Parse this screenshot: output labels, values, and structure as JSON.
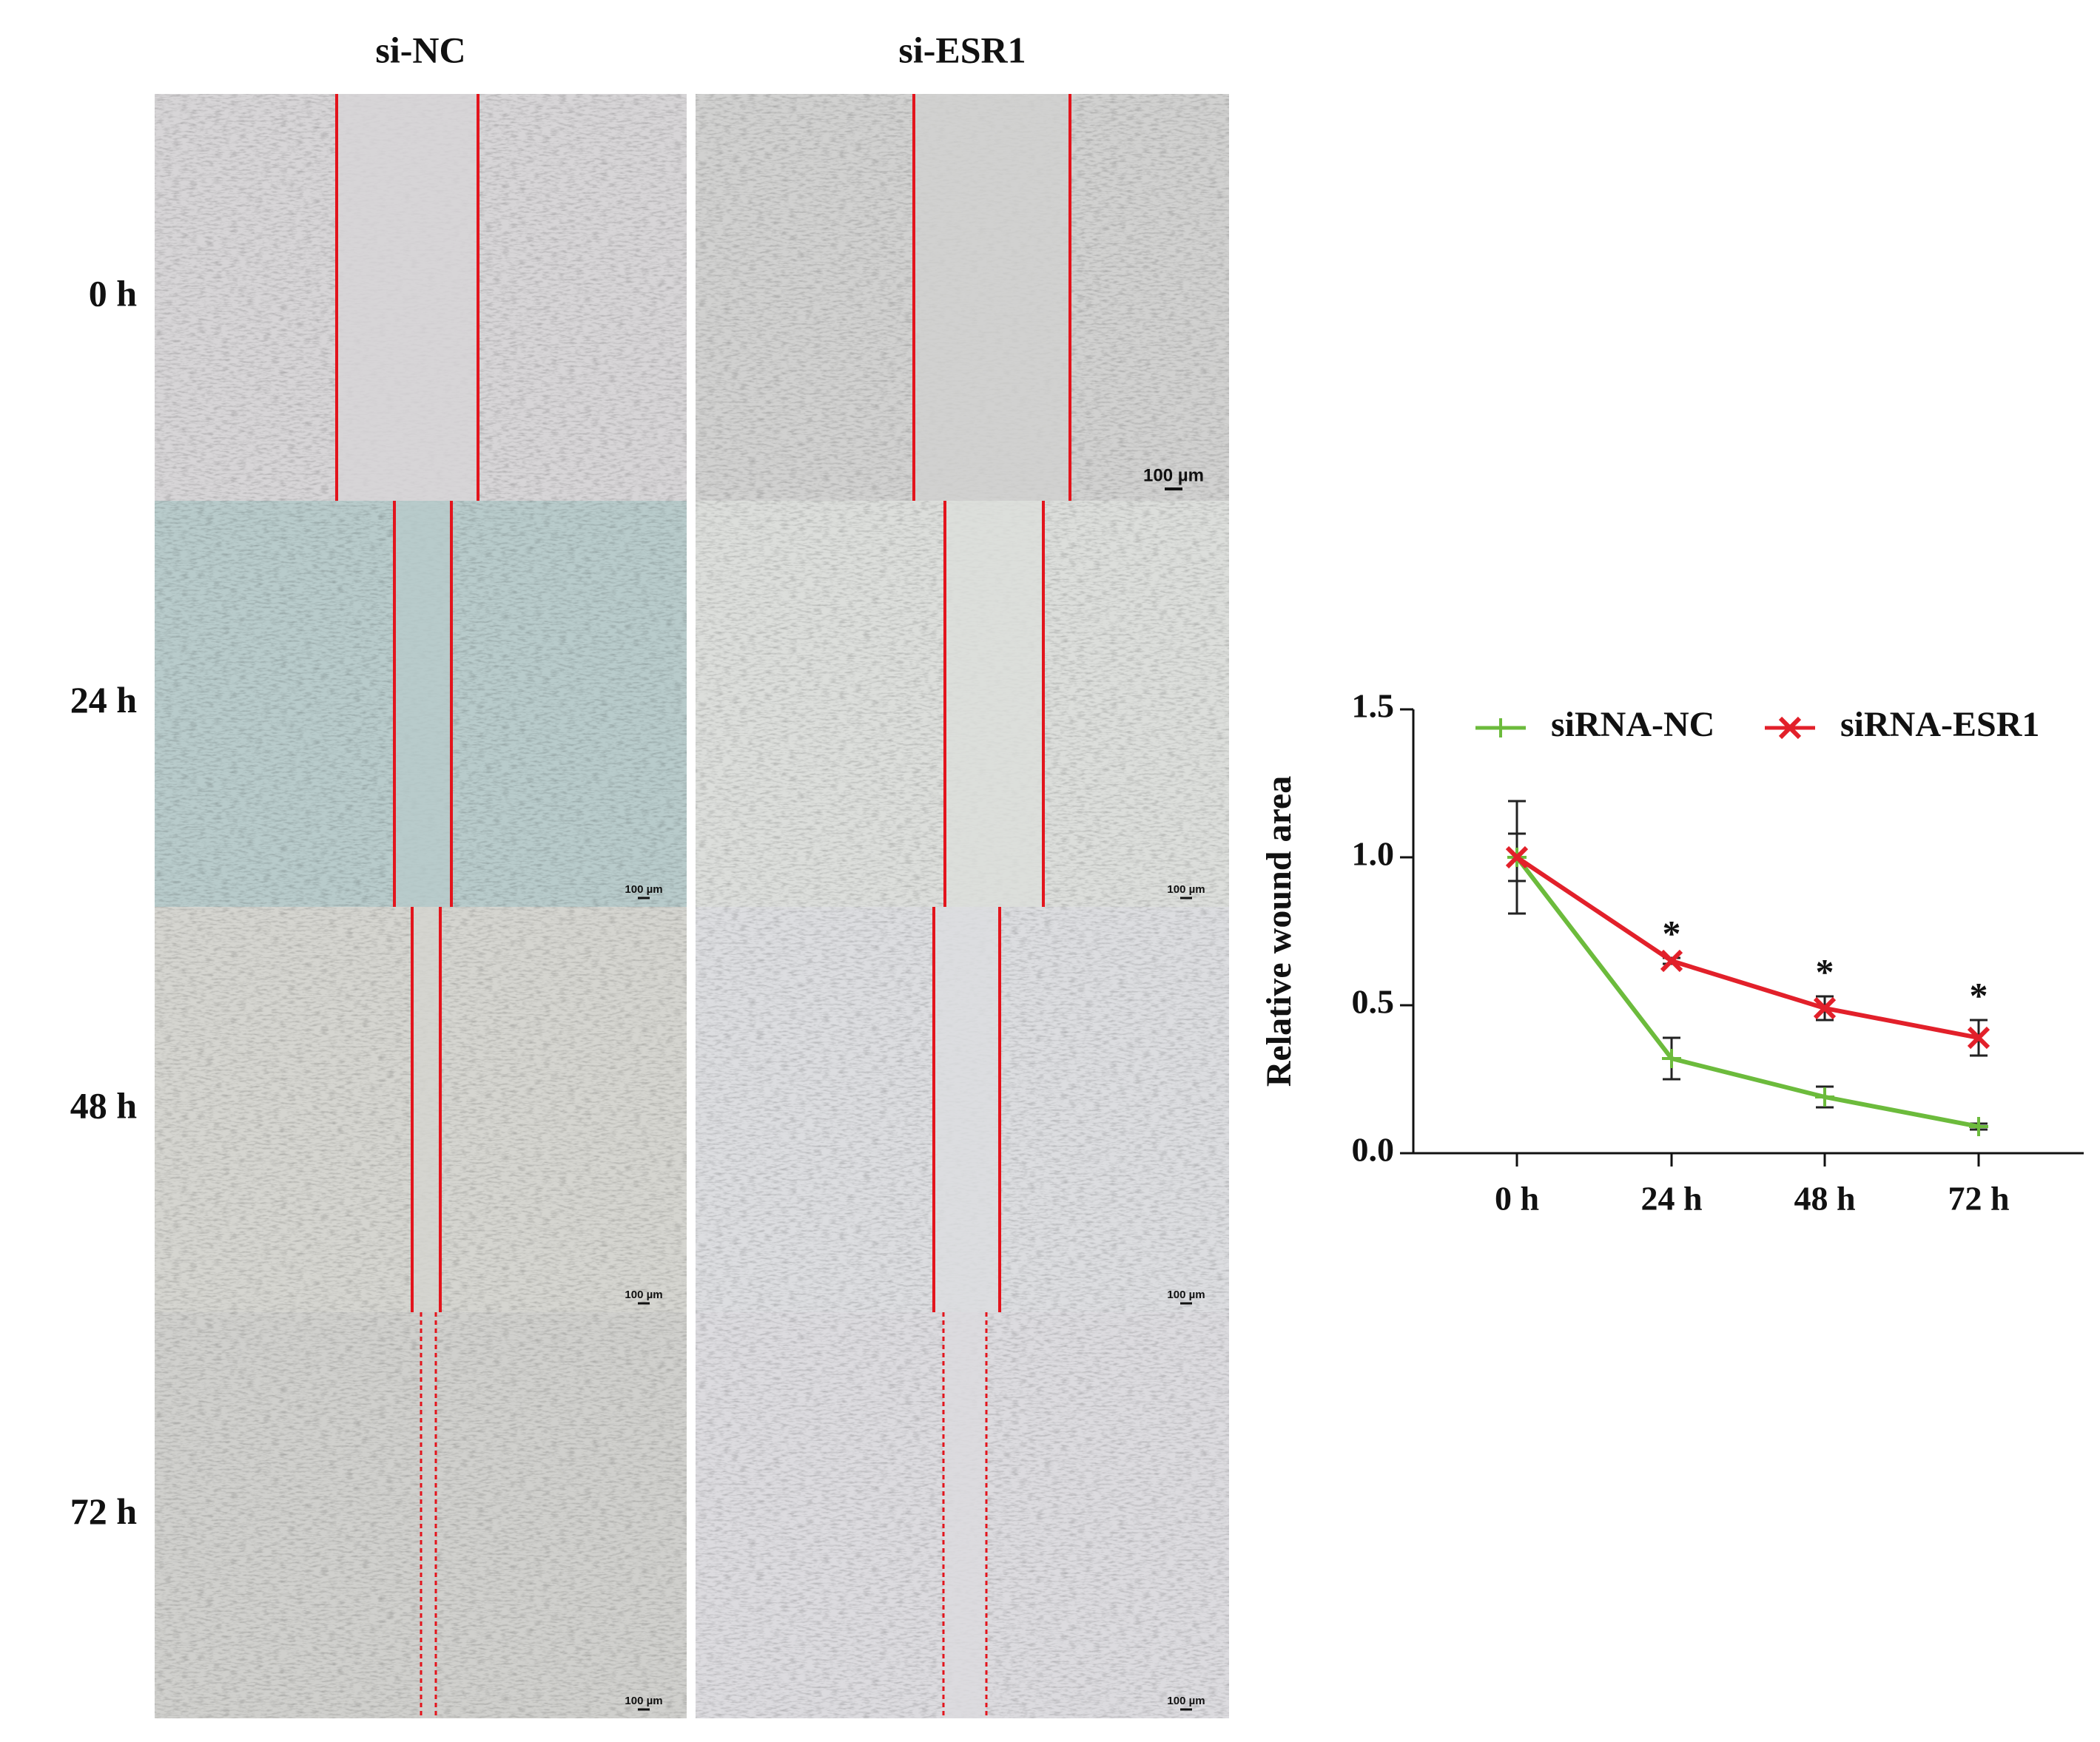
{
  "figure": {
    "columns": [
      "si-NC",
      "si-ESR1"
    ],
    "rows": [
      "0 h",
      "24 h",
      "48 h",
      "72 h"
    ],
    "scale_bar": "100 µm"
  },
  "chart_data": {
    "type": "line",
    "y_label": "Relative wound area",
    "categories": [
      "0 h",
      "24 h",
      "48 h",
      "72 h"
    ],
    "series": [
      {
        "name": "siRNA-NC",
        "color": "#6cbb3c",
        "marker": "+",
        "values": [
          1.0,
          0.32,
          0.19,
          0.09
        ],
        "errors": [
          0.19,
          0.07,
          0.035,
          0.01
        ]
      },
      {
        "name": "siRNA-ESR1",
        "color": "#e2202a",
        "marker": "x",
        "values": [
          1.0,
          0.65,
          0.49,
          0.39
        ],
        "errors": [
          0.08,
          0.01,
          0.04,
          0.06
        ],
        "annotations": [
          null,
          "*",
          "*",
          "*"
        ]
      }
    ],
    "ylim": [
      0,
      1.5
    ],
    "yticks": [
      {
        "value": 0,
        "label": "0.0"
      },
      {
        "value": 0.5,
        "label": "0.5"
      },
      {
        "value": 1,
        "label": "1.0"
      },
      {
        "value": 1.5,
        "label": "1.5"
      }
    ],
    "legend": "top"
  }
}
